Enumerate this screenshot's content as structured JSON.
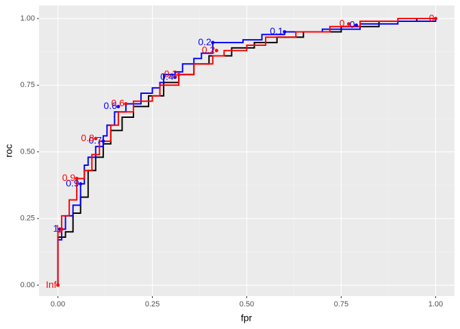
{
  "chart_data": {
    "type": "step",
    "x_label": "fpr",
    "y_label": "roc",
    "xlim": [
      -0.05,
      1.05
    ],
    "ylim": [
      -0.041,
      1.049
    ],
    "xticks": [
      {
        "value": 0,
        "label": "0.00"
      },
      {
        "value": 0.25,
        "label": "0.25"
      },
      {
        "value": 0.5,
        "label": "0.50"
      },
      {
        "value": 0.75,
        "label": "0.75"
      },
      {
        "value": 1,
        "label": "1.00"
      }
    ],
    "yticks": [
      {
        "value": 0,
        "label": "0.00"
      },
      {
        "value": 0.25,
        "label": "0.25"
      },
      {
        "value": 0.5,
        "label": "0.50"
      },
      {
        "value": 0.75,
        "label": "0.75"
      },
      {
        "value": 1,
        "label": "1.00"
      }
    ],
    "grid": true,
    "series": [
      {
        "color": "#000000",
        "x": [
          0,
          0,
          0.02,
          0.04,
          0.06,
          0.08,
          0.1,
          0.12,
          0.14,
          0.17,
          0.2,
          0.24,
          0.28,
          0.32,
          0.36,
          0.4,
          0.46,
          0.52,
          0.58,
          0.65,
          0.75,
          0.85,
          0.95,
          1
        ],
        "y": [
          0,
          0.18,
          0.2,
          0.27,
          0.33,
          0.43,
          0.48,
          0.53,
          0.58,
          0.63,
          0.67,
          0.71,
          0.76,
          0.79,
          0.83,
          0.86,
          0.89,
          0.91,
          0.93,
          0.95,
          0.97,
          0.99,
          1,
          1
        ]
      },
      {
        "color": "#0000ff",
        "x": [
          0,
          0,
          0.01,
          0.02,
          0.04,
          0.06,
          0.07,
          0.08,
          0.1,
          0.12,
          0.13,
          0.15,
          0.18,
          0.22,
          0.25,
          0.27,
          0.28,
          0.31,
          0.33,
          0.36,
          0.38,
          0.41,
          0.49,
          0.54,
          0.6,
          0.7,
          0.8,
          0.9,
          1
        ],
        "y": [
          0,
          0.17,
          0.21,
          0.26,
          0.3,
          0.38,
          0.45,
          0.48,
          0.52,
          0.56,
          0.6,
          0.65,
          0.68,
          0.72,
          0.74,
          0.76,
          0.79,
          0.8,
          0.83,
          0.85,
          0.87,
          0.91,
          0.92,
          0.94,
          0.95,
          0.96,
          0.98,
          0.99,
          1
        ],
        "label_x": [
          0.005,
          0.06,
          0.12,
          0.16,
          0.31,
          0.41,
          0.6,
          0.79
        ],
        "label_y": [
          0.21,
          0.38,
          0.54,
          0.67,
          0.78,
          0.91,
          0.95,
          0.975
        ],
        "labels": [
          "1",
          "0.9",
          "0.7",
          "0.6",
          "0.4",
          "0.2",
          "0.1",
          "0"
        ]
      },
      {
        "color": "#ff0000",
        "x": [
          0,
          0,
          0.01,
          0.03,
          0.05,
          0.07,
          0.09,
          0.11,
          0.14,
          0.16,
          0.2,
          0.25,
          0.27,
          0.32,
          0.36,
          0.41,
          0.44,
          0.5,
          0.55,
          0.63,
          0.72,
          0.8,
          0.9,
          1
        ],
        "y": [
          0,
          0.2,
          0.26,
          0.32,
          0.4,
          0.43,
          0.49,
          0.54,
          0.6,
          0.65,
          0.69,
          0.71,
          0.75,
          0.79,
          0.83,
          0.86,
          0.88,
          0.9,
          0.93,
          0.95,
          0.97,
          0.99,
          1,
          1
        ],
        "label_x": [
          0,
          0.01,
          0.05,
          0.1,
          0.18,
          0.32,
          0.42,
          0.77,
          1
        ],
        "label_y": [
          0,
          0.21,
          0.4,
          0.55,
          0.68,
          0.79,
          0.88,
          0.98,
          1
        ],
        "labels": [
          "Inf",
          "1",
          "0.9",
          "0.8",
          "0.6",
          "0.3",
          "0.2",
          "0.",
          "0"
        ]
      }
    ]
  }
}
